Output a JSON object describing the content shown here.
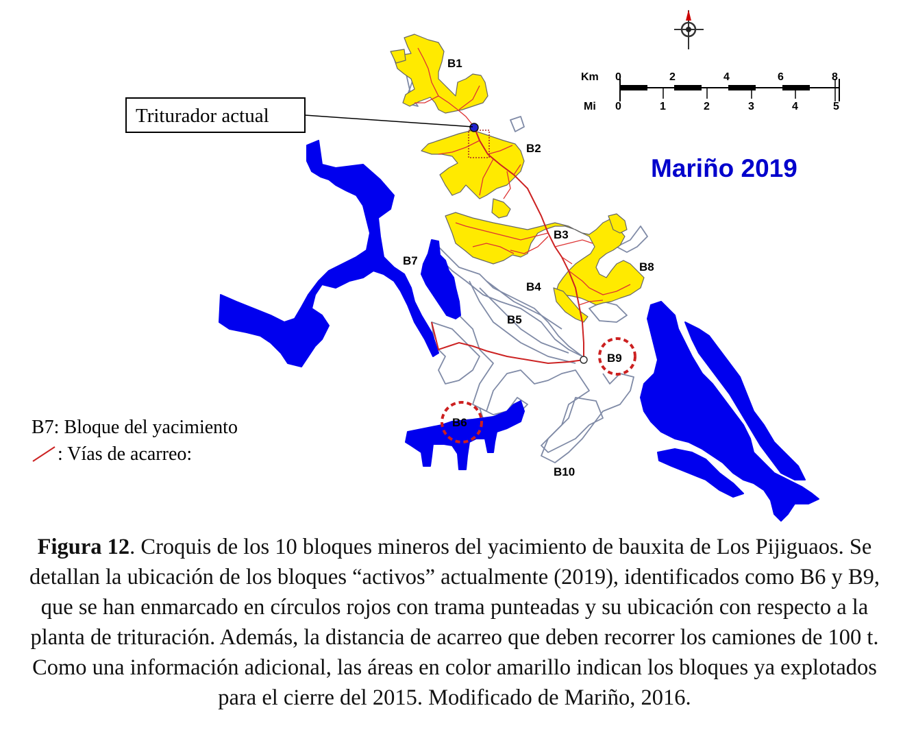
{
  "map": {
    "author_label": "Mariño 2019",
    "crusher_label": "Triturador actual",
    "blocks": [
      "B1",
      "B2",
      "B3",
      "B4",
      "B5",
      "B6",
      "B7",
      "B8",
      "B9",
      "B10"
    ],
    "highlighted_blocks": [
      "B6",
      "B9"
    ],
    "scale_bar": {
      "km_unit": "Km",
      "km_ticks": [
        "0",
        "2",
        "4",
        "6",
        "8"
      ],
      "mi_unit": "Mi",
      "mi_ticks": [
        "0",
        "1",
        "2",
        "3",
        "4",
        "5"
      ]
    },
    "legend": {
      "block_item": "B7: Bloque del yacimiento",
      "road_item": ": Vías de acarreo:"
    },
    "colors": {
      "active_blocks": "#0000ee",
      "exploited_2015": "#ffea00",
      "haul_roads": "#cc2222",
      "highlight_circle": "#cc2020",
      "outline": "#7f8aa6"
    }
  },
  "caption": {
    "label": "Figura 12",
    "text": ". Croquis de los 10 bloques mineros del yacimiento de bauxita de Los Pijiguaos. Se detallan la ubicación de los bloques “activos” actualmente (2019), identificados como B6 y B9, que se han enmarcado en círculos rojos con trama punteadas y su ubicación con respecto a la planta de trituración. Además, la distancia de acarreo que deben recorrer los camiones de 100 t. Como una información adicional, las áreas en color amarillo indican los bloques ya explotados para el cierre del 2015. Modificado de Mariño, 2016."
  }
}
